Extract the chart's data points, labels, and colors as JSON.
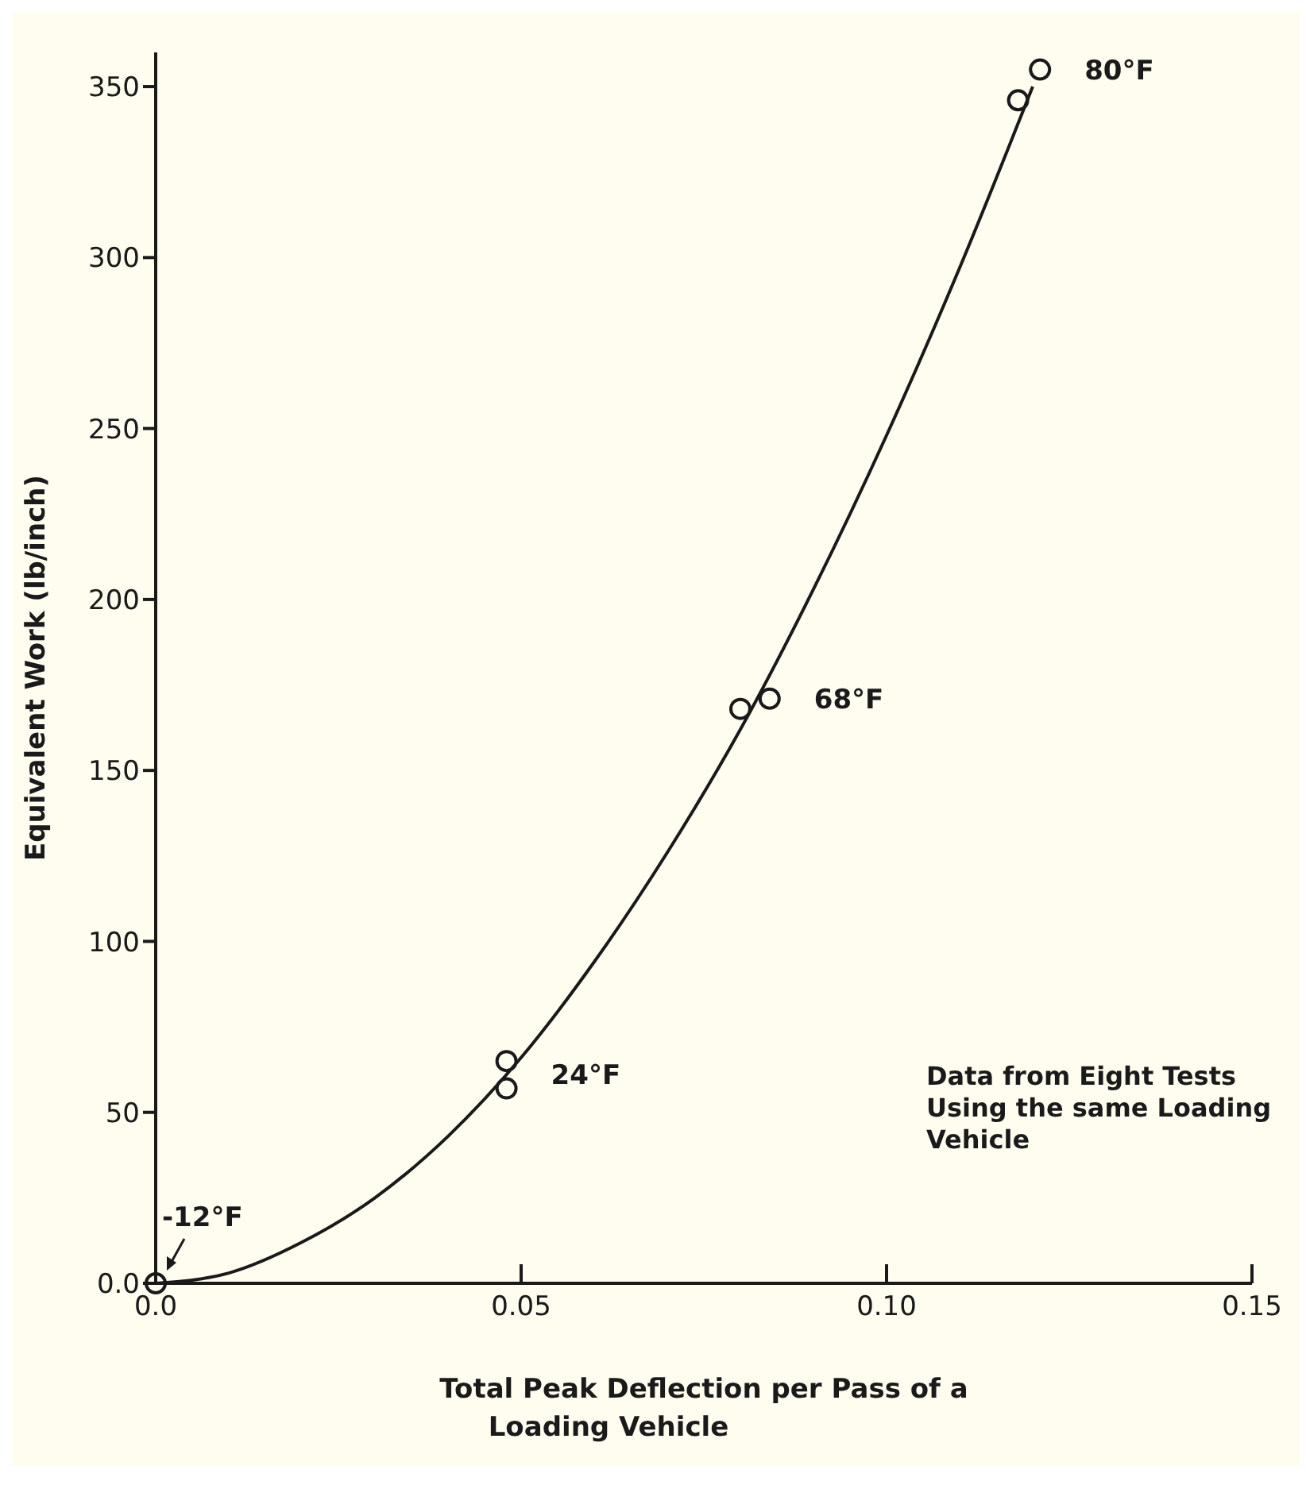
{
  "chart_data": {
    "type": "scatter",
    "xlabel": "Total Peak Deflection per Pass of a Loading Vehicle",
    "ylabel": "Equivalent Work (lb/inch)",
    "xlim": [
      0,
      0.15
    ],
    "xticks": [
      {
        "value": 0,
        "label": "0.0"
      },
      0.05,
      {
        "value": 0.1,
        "label": "0.10"
      },
      0.15
    ],
    "ylim": [
      0,
      360
    ],
    "yticks": [
      {
        "value": 0,
        "label": "0.0"
      },
      50,
      100,
      150,
      200,
      250,
      300,
      350
    ],
    "grid": false,
    "legend": false,
    "marker": "circle",
    "series": [
      {
        "color": "#1a1a1a",
        "x": [
          0,
          0.048,
          0.048,
          0.08,
          0.084,
          0.118,
          0.121
        ],
        "values": [
          0,
          65,
          57,
          168,
          171,
          346,
          355
        ]
      },
      {
        "type": "line",
        "color": "#1a1a1a",
        "marker": "none",
        "line_style": "solid",
        "x": [
          0,
          0.01,
          0.02,
          0.03,
          0.04,
          0.05,
          0.06,
          0.07,
          0.08,
          0.09,
          0.1,
          0.11,
          0.12
        ],
        "values": [
          0,
          3,
          12,
          25,
          43,
          66,
          94,
          126,
          162,
          203,
          248,
          297,
          350
        ]
      }
    ],
    "annotations": [
      {
        "text": "-12°F",
        "x": 0,
        "y": 0
      },
      {
        "text": "24°F",
        "x": 0.048,
        "y": 61
      },
      {
        "text": "68°F",
        "x": 0.084,
        "y": 171
      },
      {
        "text": "80°F",
        "x": 0.121,
        "y": 355
      },
      "Data from Eight Tests Using the same Loading Vehicle"
    ]
  }
}
